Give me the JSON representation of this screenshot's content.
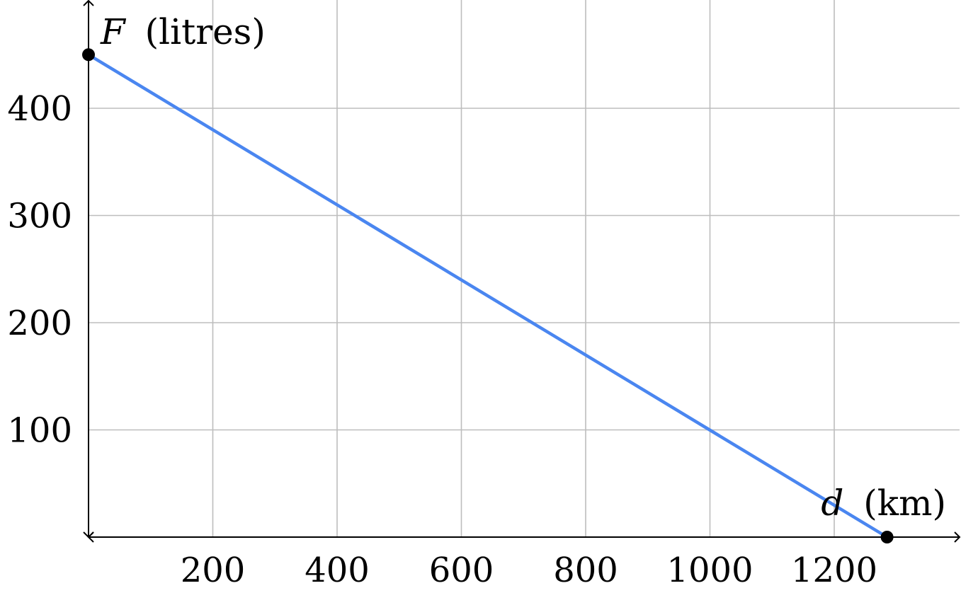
{
  "chart_data": {
    "type": "line",
    "title": "",
    "xlabel_var": "d",
    "xlabel_unit": "(km)",
    "ylabel_var": "F",
    "ylabel_unit": "(litres)",
    "xlim": [
      0,
      1400
    ],
    "ylim": [
      0,
      500
    ],
    "x_ticks": [
      200,
      400,
      600,
      800,
      1000,
      1200
    ],
    "y_ticks": [
      100,
      200,
      300,
      400
    ],
    "grid": true,
    "series": [
      {
        "x": [
          0,
          1285
        ],
        "y": [
          450,
          0
        ],
        "color": "#4a86f0"
      }
    ],
    "markers": [
      {
        "x": 0,
        "y": 450
      },
      {
        "x": 1285,
        "y": 0
      }
    ]
  }
}
